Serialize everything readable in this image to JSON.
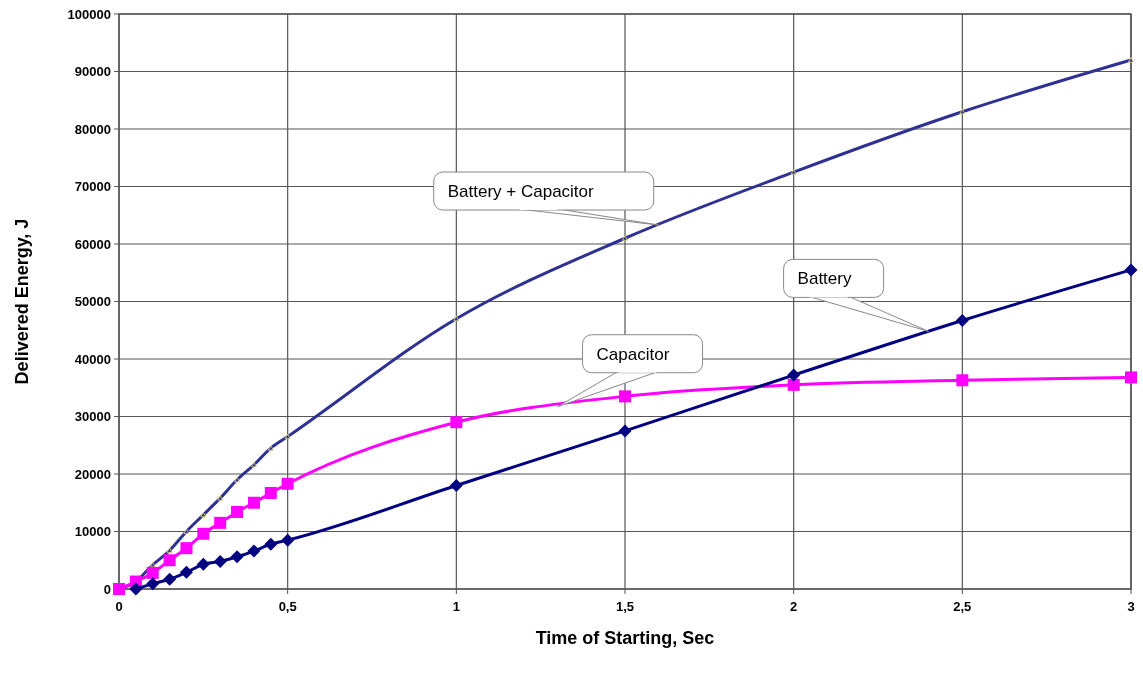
{
  "chart_data": {
    "type": "line",
    "xlabel": "Time of Starting, Sec",
    "ylabel": "Delivered Energy, J",
    "xlim": [
      0,
      3
    ],
    "xticks": [
      0,
      {
        "value": 0.5,
        "label": "0,5"
      },
      1,
      {
        "value": 1.5,
        "label": "1,5"
      },
      2,
      {
        "value": 2.5,
        "label": "2,5"
      },
      3
    ],
    "ylim": [
      0,
      100000
    ],
    "yticks": [
      0,
      10000,
      20000,
      30000,
      40000,
      50000,
      60000,
      70000,
      80000,
      90000,
      100000
    ],
    "grid": true,
    "line_style": "solid",
    "series": [
      {
        "name": "Battery + Capacitor",
        "color": "#2e3192",
        "marker": "triangle",
        "x": [
          0,
          0.05,
          0.1,
          0.15,
          0.2,
          0.25,
          0.3,
          0.35,
          0.4,
          0.45,
          0.5,
          1,
          1.5,
          2,
          2.5,
          3
        ],
        "values": [
          0,
          1300,
          4200,
          6700,
          10000,
          12900,
          15800,
          19000,
          21600,
          24500,
          26500,
          47000,
          61000,
          72500,
          83000,
          92000
        ]
      },
      {
        "name": "Capacitor",
        "color": "#ff00ff",
        "marker": "square",
        "x": [
          0,
          0.05,
          0.1,
          0.15,
          0.2,
          0.25,
          0.3,
          0.35,
          0.4,
          0.45,
          0.5,
          1,
          1.5,
          2,
          2.5,
          3
        ],
        "values": [
          0,
          1300,
          2800,
          5000,
          7100,
          9600,
          11500,
          13400,
          15000,
          16700,
          18300,
          29000,
          33500,
          35500,
          36300,
          36800
        ]
      },
      {
        "name": "Battery",
        "color": "#000080",
        "marker": "diamond",
        "x": [
          0.05,
          0.1,
          0.15,
          0.2,
          0.25,
          0.3,
          0.35,
          0.4,
          0.45,
          0.5,
          1,
          1.5,
          2,
          2.5,
          3
        ],
        "values": [
          0,
          900,
          1700,
          2900,
          4300,
          4800,
          5600,
          6600,
          7800,
          8500,
          18000,
          27500,
          37200,
          46700,
          55500
        ]
      }
    ]
  }
}
